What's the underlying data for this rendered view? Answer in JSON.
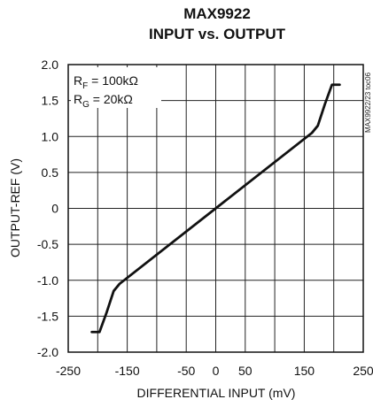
{
  "chart_data": {
    "type": "line",
    "title": "MAX9922",
    "subtitle": "INPUT vs. OUTPUT",
    "xlabel": "DIFFERENTIAL INPUT (mV)",
    "ylabel": "OUTPUT-REF (V)",
    "xlim": [
      -250,
      250
    ],
    "ylim": [
      -2.0,
      2.0
    ],
    "x_ticks": [
      -250,
      -150,
      -50,
      0,
      50,
      150,
      250
    ],
    "x_tick_labels": [
      "-250",
      "-150",
      "-50",
      "0",
      "50",
      "150",
      "250"
    ],
    "y_ticks": [
      2.0,
      1.5,
      1.0,
      0.5,
      0,
      -0.5,
      -1.0,
      -1.5,
      -2.0
    ],
    "y_tick_labels": [
      "2.0",
      "1.5",
      "1.0",
      "0.5",
      "0",
      "-0.5",
      "-1.0",
      "-1.5",
      "-2.0"
    ],
    "x_grid": [
      -200,
      -150,
      -100,
      -50,
      0,
      50,
      100,
      150,
      200
    ],
    "y_grid": [
      1.5,
      1.0,
      0.5,
      0,
      -0.5,
      -1.0,
      -1.5
    ],
    "grid": true,
    "annotations": [
      "RF = 100kΩ",
      "RG = 20kΩ"
    ],
    "annotation_parts": {
      "rf_main": "R",
      "rf_sub": "F",
      "rf_rest": " = 100kΩ",
      "rg_main": "R",
      "rg_sub": "G",
      "rg_rest": " = 20kΩ"
    },
    "side_label": "MAX9922/23 toc06",
    "series": [
      {
        "x": [
          -210,
          -197,
          -185,
          -173,
          -163,
          0,
          163,
          173,
          185,
          197,
          210
        ],
        "y": [
          -1.72,
          -1.72,
          -1.45,
          -1.15,
          -1.05,
          0,
          1.05,
          1.15,
          1.45,
          1.72,
          1.72
        ]
      }
    ]
  }
}
